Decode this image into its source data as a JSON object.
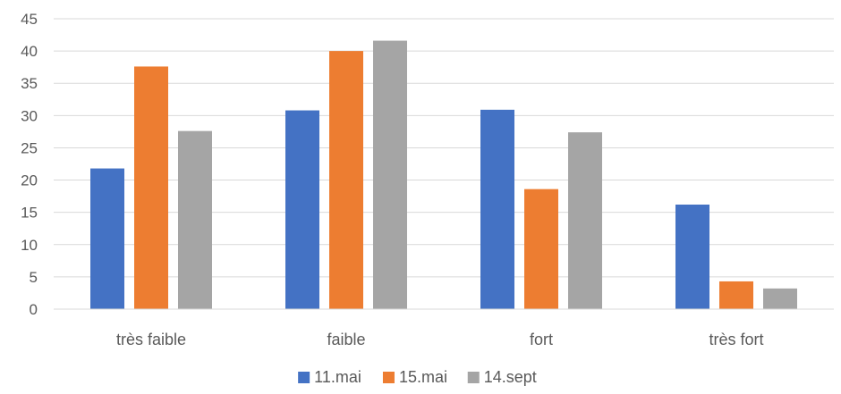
{
  "chart_data": {
    "type": "bar",
    "title": "",
    "xlabel": "",
    "ylabel": "",
    "categories": [
      "très faible",
      "faible",
      "fort",
      "très fort"
    ],
    "series": [
      {
        "name": "11.mai",
        "color": "#4472C4",
        "values": [
          21.8,
          30.8,
          30.9,
          16.2
        ]
      },
      {
        "name": "15.mai",
        "color": "#ED7D31",
        "values": [
          37.6,
          40.0,
          18.6,
          4.3
        ]
      },
      {
        "name": "14.sept",
        "color": "#A5A5A5",
        "values": [
          27.6,
          41.6,
          27.4,
          3.2
        ]
      }
    ],
    "ylim": [
      0,
      45
    ],
    "yticks": [
      0,
      5,
      10,
      15,
      20,
      25,
      30,
      35,
      40,
      45
    ],
    "grid": true,
    "legend_position": "bottom"
  }
}
